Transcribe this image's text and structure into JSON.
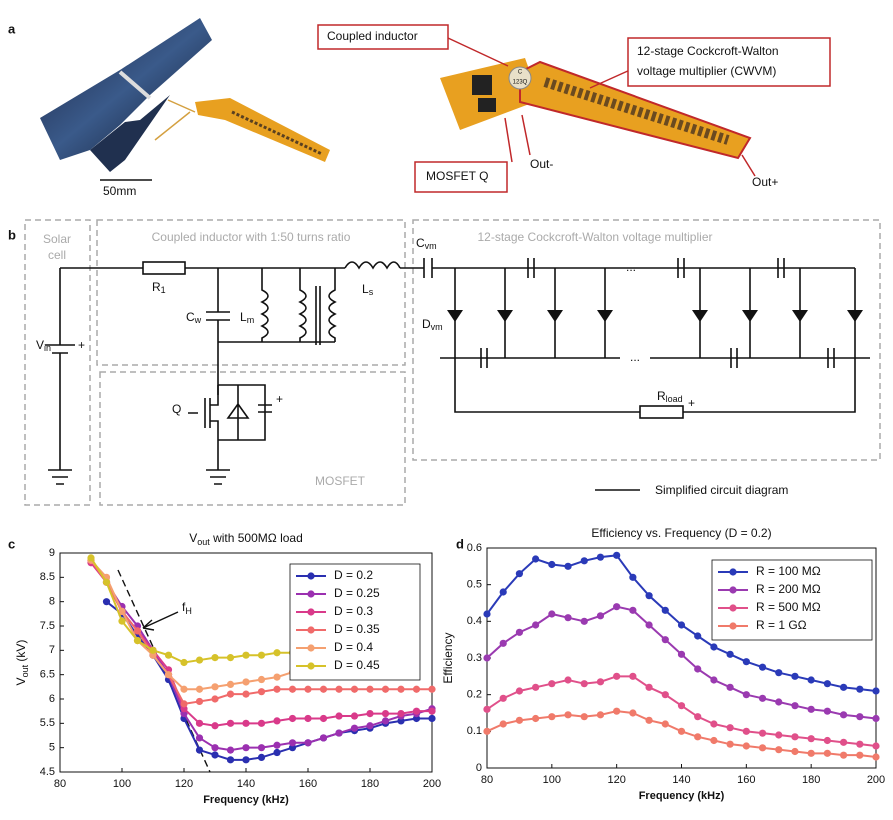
{
  "panel_labels": [
    "a",
    "b",
    "c",
    "d"
  ],
  "photo": {
    "scale_bar": "50mm",
    "callouts": {
      "inductor": "Coupled inductor",
      "cwvm": [
        "12-stage Cockcroft-Walton",
        "voltage multiplier (CWVM)"
      ],
      "mosfet": "MOSFET Q",
      "out_minus": "Out-",
      "out_plus": "Out+"
    },
    "chip_label": [
      "C",
      "123Q"
    ]
  },
  "circuit": {
    "boxes": {
      "solar": [
        "Solar",
        "cell"
      ],
      "inductor": "Coupled inductor with 1:50 turns ratio",
      "cwvm": "12-stage Cockcroft-Walton voltage multiplier",
      "mosfet": "MOSFET"
    },
    "labels": {
      "r1": [
        "R",
        "1"
      ],
      "cw": [
        "C",
        "w"
      ],
      "lm": [
        "L",
        "m"
      ],
      "ls": [
        "L",
        "s"
      ],
      "cvm": [
        "C",
        "vm"
      ],
      "dvm": [
        "D",
        "vm"
      ],
      "vin": [
        "V",
        "in"
      ],
      "q": "Q",
      "rload": [
        "R",
        "load"
      ],
      "plus": "+",
      "dots": "..."
    },
    "legend": "Simplified circuit diagram"
  },
  "chart_data": [
    {
      "type": "line",
      "title": [
        "V",
        "out",
        " with 500MΩ load"
      ],
      "x_label": "Frequency (kHz)",
      "y_label": [
        "V",
        "out",
        " (kV)"
      ],
      "annotation": [
        "f",
        "H"
      ],
      "x": [
        90,
        95,
        100,
        105,
        110,
        115,
        120,
        125,
        130,
        135,
        140,
        145,
        150,
        155,
        160,
        165,
        170,
        175,
        180,
        185,
        190,
        195,
        200
      ],
      "series": [
        {
          "name": "D = 0.2",
          "color": "#2a2fb0",
          "values": [
            null,
            8.0,
            7.75,
            7.3,
            6.9,
            6.4,
            5.6,
            4.95,
            4.85,
            4.75,
            4.75,
            4.8,
            4.9,
            5.0,
            5.1,
            5.2,
            5.3,
            5.35,
            5.4,
            5.5,
            5.55,
            5.6,
            5.6
          ]
        },
        {
          "name": "D = 0.25",
          "color": "#9b30b0",
          "values": [
            8.85,
            8.4,
            7.9,
            7.5,
            7.0,
            6.5,
            5.7,
            5.2,
            5.0,
            4.95,
            5.0,
            5.0,
            5.05,
            5.1,
            5.1,
            5.2,
            5.3,
            5.4,
            5.45,
            5.55,
            5.65,
            5.7,
            5.8
          ]
        },
        {
          "name": "D = 0.3",
          "color": "#d93a8a",
          "values": [
            8.8,
            8.4,
            7.8,
            7.4,
            7.0,
            6.6,
            5.8,
            5.5,
            5.45,
            5.5,
            5.5,
            5.5,
            5.55,
            5.6,
            5.6,
            5.6,
            5.65,
            5.65,
            5.7,
            5.7,
            5.7,
            5.75,
            5.75
          ]
        },
        {
          "name": "D = 0.35",
          "color": "#f06a6a",
          "values": [
            8.85,
            8.4,
            7.8,
            7.4,
            6.9,
            6.5,
            5.9,
            5.95,
            6.0,
            6.1,
            6.1,
            6.15,
            6.2,
            6.2,
            6.2,
            6.2,
            6.2,
            6.2,
            6.2,
            6.2,
            6.2,
            6.2,
            6.2
          ]
        },
        {
          "name": "D = 0.4",
          "color": "#f5a070",
          "values": [
            8.85,
            8.5,
            7.8,
            7.2,
            6.9,
            6.5,
            6.2,
            6.2,
            6.25,
            6.3,
            6.35,
            6.4,
            6.45,
            6.55,
            null,
            null,
            null,
            null,
            null,
            null,
            null,
            null,
            null
          ]
        },
        {
          "name": "D = 0.45",
          "color": "#d6c22a",
          "values": [
            8.9,
            8.4,
            7.6,
            7.2,
            7.0,
            6.9,
            6.75,
            6.8,
            6.85,
            6.85,
            6.9,
            6.9,
            6.95,
            6.95,
            null,
            null,
            null,
            null,
            null,
            null,
            null,
            null,
            null
          ]
        }
      ],
      "xlim": [
        80,
        200
      ],
      "xticks": [
        80,
        100,
        120,
        140,
        160,
        180,
        200
      ],
      "ylim": [
        4.5,
        9
      ],
      "yticks": [
        4.5,
        5,
        5.5,
        6,
        6.5,
        7,
        7.5,
        8,
        8.5,
        9
      ],
      "grid": false,
      "legend": "upper right"
    },
    {
      "type": "line",
      "title": "Efficiency vs. Frequency (D = 0.2)",
      "x_label": "Frequency (kHz)",
      "y_label": "Efficiency",
      "x": [
        80,
        85,
        90,
        95,
        100,
        105,
        110,
        115,
        120,
        125,
        130,
        135,
        140,
        145,
        150,
        155,
        160,
        165,
        170,
        175,
        180,
        185,
        190,
        195,
        200
      ],
      "series": [
        {
          "name": "R = 100 MΩ",
          "color": "#2a3ab8",
          "values": [
            0.42,
            0.48,
            0.53,
            0.57,
            0.555,
            0.55,
            0.565,
            0.575,
            0.58,
            0.52,
            0.47,
            0.43,
            0.39,
            0.36,
            0.33,
            0.31,
            0.29,
            0.275,
            0.26,
            0.25,
            0.24,
            0.23,
            0.22,
            0.215,
            0.21
          ]
        },
        {
          "name": "R = 200 MΩ",
          "color": "#9a3ab0",
          "values": [
            0.3,
            0.34,
            0.37,
            0.39,
            0.42,
            0.41,
            0.4,
            0.415,
            0.44,
            0.43,
            0.39,
            0.35,
            0.31,
            0.27,
            0.24,
            0.22,
            0.2,
            0.19,
            0.18,
            0.17,
            0.16,
            0.155,
            0.145,
            0.14,
            0.135
          ]
        },
        {
          "name": "R = 500 MΩ",
          "color": "#e0508a",
          "values": [
            0.16,
            0.19,
            0.21,
            0.22,
            0.23,
            0.24,
            0.23,
            0.235,
            0.25,
            0.25,
            0.22,
            0.2,
            0.17,
            0.14,
            0.12,
            0.11,
            0.1,
            0.095,
            0.09,
            0.085,
            0.08,
            0.075,
            0.07,
            0.065,
            0.06
          ]
        },
        {
          "name": "R = 1 GΩ",
          "color": "#f07a6a",
          "values": [
            0.1,
            0.12,
            0.13,
            0.135,
            0.14,
            0.145,
            0.14,
            0.145,
            0.155,
            0.15,
            0.13,
            0.12,
            0.1,
            0.085,
            0.075,
            0.065,
            0.06,
            0.055,
            0.05,
            0.045,
            0.04,
            0.04,
            0.035,
            0.035,
            0.03
          ]
        }
      ],
      "xlim": [
        80,
        200
      ],
      "xticks": [
        80,
        100,
        120,
        140,
        160,
        180,
        200
      ],
      "ylim": [
        0,
        0.6
      ],
      "yticks": [
        0,
        0.1,
        0.2,
        0.3,
        0.4,
        0.5,
        0.6
      ],
      "grid": false,
      "legend": "upper right"
    }
  ]
}
